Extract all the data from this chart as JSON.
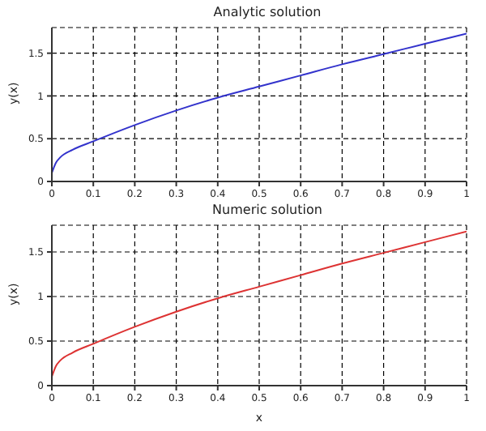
{
  "chart_data": [
    {
      "type": "line",
      "title": "Analytic solution",
      "ylabel": "y(x)",
      "x": [
        0,
        0.01,
        0.02,
        0.05,
        0.1,
        0.2,
        0.3,
        0.4,
        0.5,
        0.6,
        0.7,
        0.8,
        0.9,
        1
      ],
      "series": [
        {
          "color": "#3333cc",
          "values": [
            0.1,
            0.22,
            0.28,
            0.37,
            0.47,
            0.66,
            0.83,
            0.98,
            1.11,
            1.24,
            1.37,
            1.49,
            1.61,
            1.73
          ]
        }
      ],
      "xlim": [
        0,
        1
      ],
      "xticks": [
        0,
        0.1,
        0.2,
        0.3,
        0.4,
        0.5,
        0.6,
        0.7,
        0.8,
        0.9,
        1
      ],
      "ylim": [
        0,
        1.8
      ],
      "yticks": [
        0,
        0.5,
        1,
        1.5
      ],
      "grid": true,
      "marker": "none",
      "line_style": "solid"
    },
    {
      "type": "line",
      "title": "Numeric solution",
      "xlabel": "x",
      "ylabel": "y(x)",
      "x": [
        0,
        0.01,
        0.02,
        0.05,
        0.1,
        0.2,
        0.3,
        0.4,
        0.5,
        0.6,
        0.7,
        0.8,
        0.9,
        1
      ],
      "series": [
        {
          "color": "#dd3333",
          "values": [
            0.1,
            0.22,
            0.28,
            0.37,
            0.47,
            0.66,
            0.83,
            0.98,
            1.11,
            1.24,
            1.37,
            1.49,
            1.61,
            1.73
          ]
        }
      ],
      "xlim": [
        0,
        1
      ],
      "xticks": [
        0,
        0.1,
        0.2,
        0.3,
        0.4,
        0.5,
        0.6,
        0.7,
        0.8,
        0.9,
        1
      ],
      "ylim": [
        0,
        1.8
      ],
      "yticks": [
        0,
        0.5,
        1,
        1.5
      ],
      "grid": true,
      "marker": "none",
      "line_style": "solid"
    }
  ]
}
